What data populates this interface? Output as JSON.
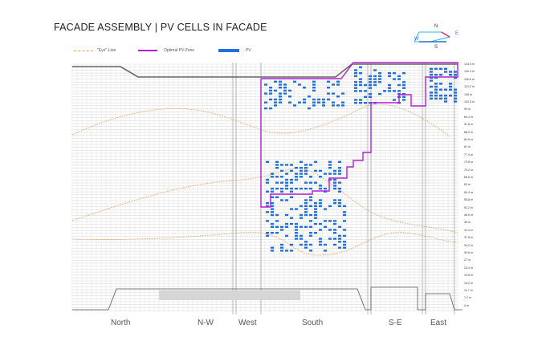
{
  "title": "FACADE ASSEMBLY | PV CELLS IN FACADE",
  "legend": {
    "eye_line": "\"Eye\"-Line",
    "optimal_pv_zone": "Optimal PV-Zone",
    "pv": "PV"
  },
  "compass": {
    "n": "N",
    "e": "E",
    "w": "W",
    "s": "S"
  },
  "elevations": [
    "124.5 m",
    "120.4 m",
    "116.8 m",
    "113.2 m",
    "108 m",
    "102.5 m",
    "99 m",
    "95.4 m",
    "91.8 m",
    "88.2 m",
    "84.6 m",
    "81 m",
    "77.4 m",
    "73.8 m",
    "70.2 m",
    "66.6 m",
    "63 m",
    "59.4 m",
    "55.8 m",
    "52.2 m",
    "48.6 m",
    "45 m",
    "41.4 m",
    "37.8 m",
    "34.2 m",
    "30.6 m",
    "27 m",
    "23.4 m",
    "19.8 m",
    "16.2 m",
    "11.7 m",
    "7.2 m",
    "0 m"
  ],
  "zones": [
    "North",
    "N-W",
    "West",
    "South",
    "S-E",
    "East"
  ],
  "colors": {
    "eye_line": "#e8924a",
    "pv_zone": "#b21fd6",
    "pv": "#1f6fe0",
    "grid": "#bbbbbb"
  }
}
